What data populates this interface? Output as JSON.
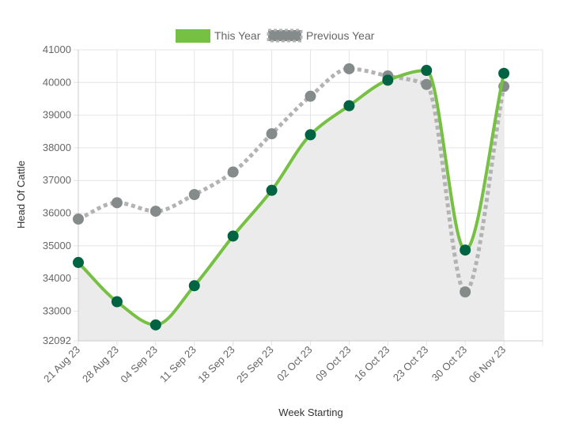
{
  "chart_data": {
    "type": "line",
    "title": "",
    "xlabel": "Week Starting",
    "ylabel": "Head Of Cattle",
    "ylim": [
      32092,
      41000
    ],
    "y_ticks": [
      "41000",
      "40000",
      "39000",
      "38000",
      "37000",
      "36000",
      "35000",
      "34000",
      "33000",
      "32092"
    ],
    "categories": [
      "21 Aug 23",
      "28 Aug 23",
      "04 Sep 23",
      "11 Sep 23",
      "18 Sep 23",
      "25 Sep 23",
      "02 Oct 23",
      "09 Oct 23",
      "16 Oct 23",
      "23 Oct 23",
      "30 Oct 23",
      "06 Nov 23"
    ],
    "grid": true,
    "legend_position": "top",
    "series": [
      {
        "name": "This Year",
        "values": [
          34490,
          33290,
          32580,
          33780,
          35300,
          36700,
          38400,
          39290,
          40070,
          40370,
          34870,
          40280
        ],
        "line_color": "#76c043",
        "point_color": "#006341",
        "style": "solid",
        "fill": "#ebebeb"
      },
      {
        "name": "Previous Year",
        "values": [
          35820,
          36320,
          36060,
          36570,
          37260,
          38430,
          39580,
          40420,
          40200,
          39940,
          null,
          39880
        ],
        "extra_point": {
          "index": 10,
          "value": 33590
        },
        "line_color": "#b3b3b3",
        "point_color": "#858b8a",
        "style": "dotted"
      }
    ]
  }
}
